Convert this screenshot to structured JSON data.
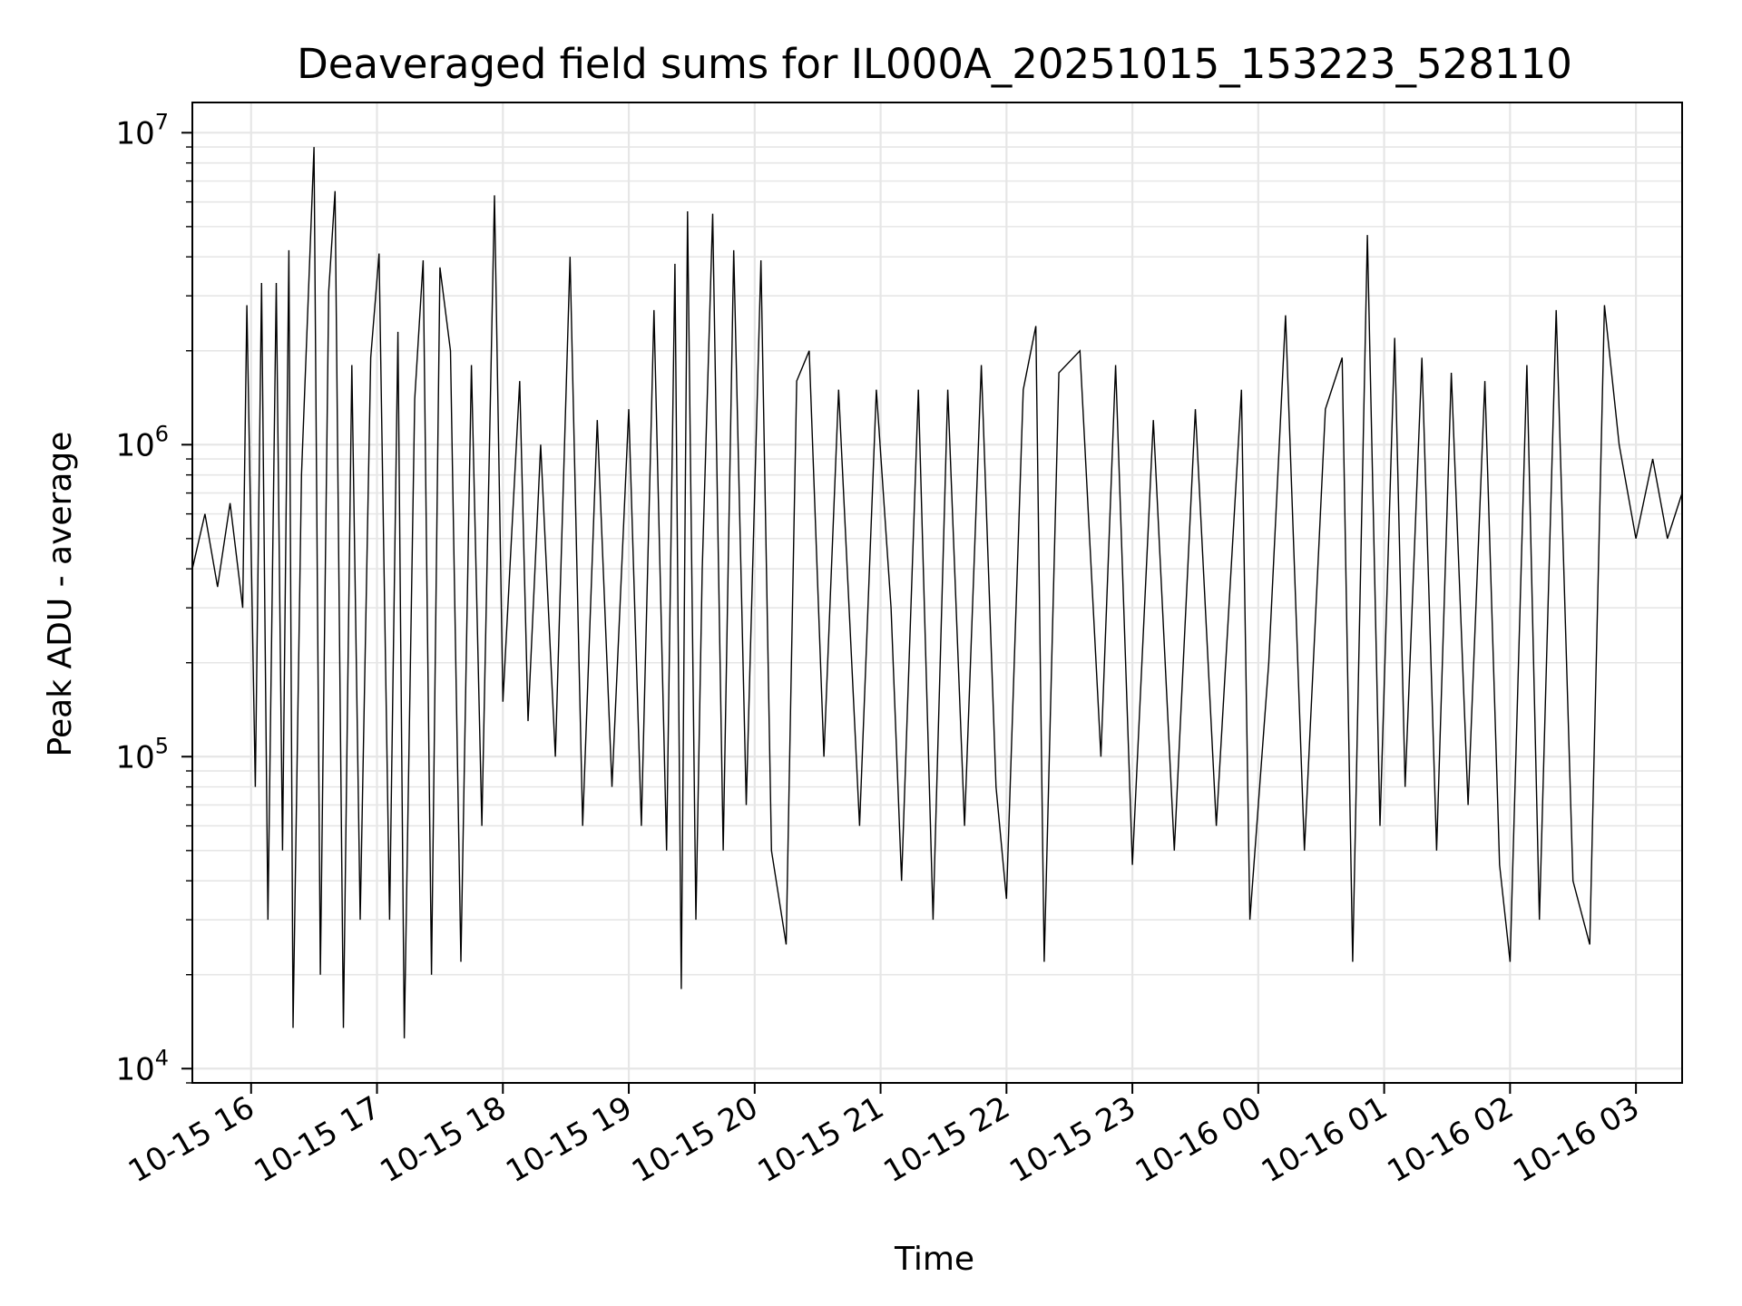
{
  "chart_data": {
    "type": "line",
    "title": "Deaveraged field sums for IL000A_20251015_153223_528110",
    "xlabel": "Time",
    "ylabel": "Peak ADU - average",
    "yscale": "log",
    "ylim": [
      9000,
      12500000
    ],
    "xlim": [
      "2025-10-15 15:32",
      "2025-10-16 03:22"
    ],
    "grid": true,
    "line_color": "#000000",
    "x_ticks": [
      {
        "label": "10-15 16",
        "t": "2025-10-15 16:00"
      },
      {
        "label": "10-15 17",
        "t": "2025-10-15 17:00"
      },
      {
        "label": "10-15 18",
        "t": "2025-10-15 18:00"
      },
      {
        "label": "10-15 19",
        "t": "2025-10-15 19:00"
      },
      {
        "label": "10-15 20",
        "t": "2025-10-15 20:00"
      },
      {
        "label": "10-15 21",
        "t": "2025-10-15 21:00"
      },
      {
        "label": "10-15 22",
        "t": "2025-10-15 22:00"
      },
      {
        "label": "10-15 23",
        "t": "2025-10-15 23:00"
      },
      {
        "label": "10-16 00",
        "t": "2025-10-16 00:00"
      },
      {
        "label": "10-16 01",
        "t": "2025-10-16 01:00"
      },
      {
        "label": "10-16 02",
        "t": "2025-10-16 02:00"
      },
      {
        "label": "10-16 03",
        "t": "2025-10-16 03:00"
      }
    ],
    "y_ticks": [
      {
        "base": "10",
        "exp": "4",
        "value": 10000
      },
      {
        "base": "10",
        "exp": "5",
        "value": 100000
      },
      {
        "base": "10",
        "exp": "6",
        "value": 1000000
      },
      {
        "base": "10",
        "exp": "7",
        "value": 10000000
      }
    ],
    "series": [
      {
        "points": [
          [
            "2025-10-15 15:32",
            400000
          ],
          [
            "2025-10-15 15:38",
            600000
          ],
          [
            "2025-10-15 15:44",
            350000
          ],
          [
            "2025-10-15 15:50",
            650000
          ],
          [
            "2025-10-15 15:56",
            300000
          ],
          [
            "2025-10-15 15:58",
            2800000
          ],
          [
            "2025-10-15 16:02",
            80000
          ],
          [
            "2025-10-15 16:05",
            3300000
          ],
          [
            "2025-10-15 16:08",
            30000
          ],
          [
            "2025-10-15 16:12",
            3300000
          ],
          [
            "2025-10-15 16:15",
            50000
          ],
          [
            "2025-10-15 16:18",
            4200000
          ],
          [
            "2025-10-15 16:20",
            13500
          ],
          [
            "2025-10-15 16:24",
            800000
          ],
          [
            "2025-10-15 16:30",
            9000000
          ],
          [
            "2025-10-15 16:33",
            20000
          ],
          [
            "2025-10-15 16:37",
            3100000
          ],
          [
            "2025-10-15 16:40",
            6500000
          ],
          [
            "2025-10-15 16:44",
            13500
          ],
          [
            "2025-10-15 16:48",
            1800000
          ],
          [
            "2025-10-15 16:52",
            30000
          ],
          [
            "2025-10-15 16:57",
            1900000
          ],
          [
            "2025-10-15 17:01",
            4100000
          ],
          [
            "2025-10-15 17:06",
            30000
          ],
          [
            "2025-10-15 17:10",
            2300000
          ],
          [
            "2025-10-15 17:13",
            12500
          ],
          [
            "2025-10-15 17:18",
            1400000
          ],
          [
            "2025-10-15 17:22",
            3900000
          ],
          [
            "2025-10-15 17:26",
            20000
          ],
          [
            "2025-10-15 17:30",
            3700000
          ],
          [
            "2025-10-15 17:35",
            2000000
          ],
          [
            "2025-10-15 17:40",
            22000
          ],
          [
            "2025-10-15 17:45",
            1800000
          ],
          [
            "2025-10-15 17:50",
            60000
          ],
          [
            "2025-10-15 17:56",
            6300000
          ],
          [
            "2025-10-15 18:00",
            150000
          ],
          [
            "2025-10-15 18:08",
            1600000
          ],
          [
            "2025-10-15 18:12",
            130000
          ],
          [
            "2025-10-15 18:18",
            1000000
          ],
          [
            "2025-10-15 18:25",
            100000
          ],
          [
            "2025-10-15 18:32",
            4000000
          ],
          [
            "2025-10-15 18:38",
            60000
          ],
          [
            "2025-10-15 18:45",
            1200000
          ],
          [
            "2025-10-15 18:52",
            80000
          ],
          [
            "2025-10-15 19:00",
            1300000
          ],
          [
            "2025-10-15 19:06",
            60000
          ],
          [
            "2025-10-15 19:12",
            2700000
          ],
          [
            "2025-10-15 19:18",
            50000
          ],
          [
            "2025-10-15 19:22",
            3800000
          ],
          [
            "2025-10-15 19:25",
            18000
          ],
          [
            "2025-10-15 19:28",
            5600000
          ],
          [
            "2025-10-15 19:32",
            30000
          ],
          [
            "2025-10-15 19:35",
            400000
          ],
          [
            "2025-10-15 19:40",
            5500000
          ],
          [
            "2025-10-15 19:45",
            50000
          ],
          [
            "2025-10-15 19:50",
            4200000
          ],
          [
            "2025-10-15 19:56",
            70000
          ],
          [
            "2025-10-15 20:03",
            3900000
          ],
          [
            "2025-10-15 20:08",
            50000
          ],
          [
            "2025-10-15 20:15",
            25000
          ],
          [
            "2025-10-15 20:20",
            1600000
          ],
          [
            "2025-10-15 20:26",
            2000000
          ],
          [
            "2025-10-15 20:33",
            100000
          ],
          [
            "2025-10-15 20:40",
            1500000
          ],
          [
            "2025-10-15 20:50",
            60000
          ],
          [
            "2025-10-15 20:58",
            1500000
          ],
          [
            "2025-10-15 21:05",
            300000
          ],
          [
            "2025-10-15 21:10",
            40000
          ],
          [
            "2025-10-15 21:18",
            1500000
          ],
          [
            "2025-10-15 21:25",
            30000
          ],
          [
            "2025-10-15 21:32",
            1500000
          ],
          [
            "2025-10-15 21:40",
            60000
          ],
          [
            "2025-10-15 21:48",
            1800000
          ],
          [
            "2025-10-15 21:55",
            80000
          ],
          [
            "2025-10-15 22:00",
            35000
          ],
          [
            "2025-10-15 22:08",
            1500000
          ],
          [
            "2025-10-15 22:14",
            2400000
          ],
          [
            "2025-10-15 22:18",
            22000
          ],
          [
            "2025-10-15 22:25",
            1700000
          ],
          [
            "2025-10-15 22:35",
            2000000
          ],
          [
            "2025-10-15 22:45",
            100000
          ],
          [
            "2025-10-15 22:52",
            1800000
          ],
          [
            "2025-10-15 23:00",
            45000
          ],
          [
            "2025-10-15 23:10",
            1200000
          ],
          [
            "2025-10-15 23:20",
            50000
          ],
          [
            "2025-10-15 23:30",
            1300000
          ],
          [
            "2025-10-15 23:40",
            60000
          ],
          [
            "2025-10-15 23:52",
            1500000
          ],
          [
            "2025-10-15 23:56",
            30000
          ],
          [
            "2025-10-16 00:05",
            200000
          ],
          [
            "2025-10-16 00:13",
            2600000
          ],
          [
            "2025-10-16 00:22",
            50000
          ],
          [
            "2025-10-16 00:32",
            1300000
          ],
          [
            "2025-10-16 00:40",
            1900000
          ],
          [
            "2025-10-16 00:45",
            22000
          ],
          [
            "2025-10-16 00:52",
            4700000
          ],
          [
            "2025-10-16 00:58",
            60000
          ],
          [
            "2025-10-16 01:05",
            2200000
          ],
          [
            "2025-10-16 01:10",
            80000
          ],
          [
            "2025-10-16 01:18",
            1900000
          ],
          [
            "2025-10-16 01:25",
            50000
          ],
          [
            "2025-10-16 01:32",
            1700000
          ],
          [
            "2025-10-16 01:40",
            70000
          ],
          [
            "2025-10-16 01:48",
            1600000
          ],
          [
            "2025-10-16 01:55",
            45000
          ],
          [
            "2025-10-16 02:00",
            22000
          ],
          [
            "2025-10-16 02:08",
            1800000
          ],
          [
            "2025-10-16 02:14",
            30000
          ],
          [
            "2025-10-16 02:22",
            2700000
          ],
          [
            "2025-10-16 02:30",
            40000
          ],
          [
            "2025-10-16 02:38",
            25000
          ],
          [
            "2025-10-16 02:45",
            2800000
          ],
          [
            "2025-10-16 02:52",
            1000000
          ],
          [
            "2025-10-16 03:00",
            500000
          ],
          [
            "2025-10-16 03:08",
            900000
          ],
          [
            "2025-10-16 03:15",
            500000
          ],
          [
            "2025-10-16 03:22",
            700000
          ]
        ]
      }
    ]
  }
}
